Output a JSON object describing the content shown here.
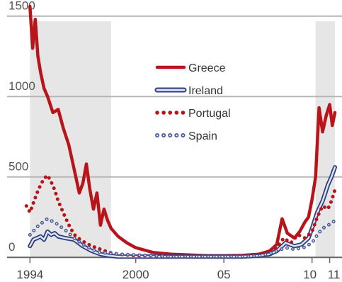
{
  "chart_data": {
    "type": "line",
    "y_ticks": [
      0,
      500,
      1000,
      1500
    ],
    "x_tick_labels": [
      {
        "label": "1994",
        "x": 1994
      },
      {
        "label": "2000",
        "x": 2000
      },
      {
        "label": "05",
        "x": 2005
      },
      {
        "label": "10",
        "x": 2010
      },
      {
        "label": "11",
        "x": 2011
      }
    ],
    "xlim": [
      1992.3,
      2011.7
    ],
    "ylim": [
      -30,
      1600
    ],
    "grid": "horizontal",
    "legend_position": "center-right",
    "shaded_ranges": [
      [
        1994,
        1998.6
      ],
      [
        2010.2,
        2011.3
      ]
    ],
    "series": [
      {
        "name": "Greece",
        "style": "solid-thick",
        "color": "#b8141b",
        "x": [
          1994.0,
          1994.15,
          1994.3,
          1994.45,
          1994.6,
          1994.8,
          1995.0,
          1995.3,
          1995.6,
          1995.9,
          1996.2,
          1996.5,
          1996.8,
          1997.0,
          1997.2,
          1997.4,
          1997.6,
          1997.8,
          1998.0,
          1998.2,
          1998.4,
          1998.6,
          1999.0,
          1999.5,
          2000.0,
          2000.5,
          2001.0,
          2002.0,
          2003.0,
          2004.0,
          2005.0,
          2006.0,
          2007.0,
          2007.6,
          2008.0,
          2008.3,
          2008.6,
          2009.0,
          2009.3,
          2009.6,
          2009.8,
          2010.0,
          2010.2,
          2010.4,
          2010.6,
          2010.8,
          2011.0,
          2011.15,
          2011.3
        ],
        "values": [
          1560,
          1300,
          1480,
          1250,
          1150,
          1050,
          1000,
          900,
          920,
          800,
          700,
          550,
          400,
          460,
          580,
          420,
          300,
          400,
          200,
          300,
          230,
          180,
          130,
          90,
          60,
          45,
          30,
          20,
          15,
          10,
          10,
          12,
          20,
          40,
          80,
          240,
          150,
          120,
          160,
          220,
          250,
          360,
          500,
          930,
          780,
          880,
          950,
          820,
          900
        ]
      },
      {
        "name": "Ireland",
        "style": "outline-thick",
        "color": "#2a3c7a",
        "x": [
          1994.0,
          1994.2,
          1994.4,
          1994.6,
          1994.8,
          1995.0,
          1995.2,
          1995.4,
          1995.6,
          1996.0,
          1996.5,
          1997.0,
          1997.5,
          1998.0,
          1998.5,
          1999.0,
          2000.0,
          2001.0,
          2002.0,
          2003.0,
          2004.0,
          2005.0,
          2006.0,
          2007.0,
          2007.6,
          2008.0,
          2008.5,
          2009.0,
          2009.4,
          2009.8,
          2010.0,
          2010.3,
          2010.6,
          2010.9,
          2011.1,
          2011.3
        ],
        "values": [
          70,
          110,
          120,
          130,
          110,
          160,
          140,
          150,
          130,
          120,
          110,
          70,
          40,
          20,
          10,
          5,
          5,
          5,
          5,
          5,
          5,
          5,
          5,
          10,
          20,
          40,
          90,
          70,
          80,
          120,
          180,
          280,
          350,
          450,
          500,
          560
        ]
      },
      {
        "name": "Portugal",
        "style": "dotted-thick",
        "color": "#b8141b",
        "x": [
          1993.8,
          1994.0,
          1994.2,
          1994.4,
          1994.6,
          1994.8,
          1995.0,
          1995.2,
          1995.4,
          1995.6,
          1995.8,
          1996.0,
          1996.3,
          1996.6,
          1997.0,
          1997.5,
          1998.0,
          1998.5,
          1999.0,
          1999.5,
          2000.0,
          2001.0,
          2002.0,
          2003.0,
          2004.0,
          2005.0,
          2006.0,
          2007.0,
          2007.5,
          2008.0,
          2008.4,
          2008.8,
          2009.2,
          2009.6,
          2010.0,
          2010.3,
          2010.6,
          2010.9,
          2011.1,
          2011.3
        ],
        "values": [
          320,
          280,
          340,
          400,
          450,
          490,
          510,
          470,
          420,
          350,
          300,
          250,
          180,
          130,
          100,
          70,
          50,
          30,
          20,
          15,
          10,
          10,
          5,
          5,
          5,
          5,
          10,
          20,
          30,
          60,
          120,
          90,
          140,
          120,
          160,
          250,
          320,
          300,
          350,
          420
        ]
      },
      {
        "name": "Spain",
        "style": "outline-dotted",
        "color": "#4a5a9a",
        "x": [
          1994.0,
          1994.5,
          1995.0,
          1995.5,
          1996.0,
          1996.5,
          1997.0,
          1997.5,
          1998.0,
          1999.0,
          2000.0,
          2001.0,
          2002.0,
          2003.0,
          2004.0,
          2005.0,
          2006.0,
          2007.0,
          2007.5,
          2008.0,
          2008.5,
          2009.0,
          2009.5,
          2010.0,
          2010.3,
          2010.6,
          2010.9,
          2011.1,
          2011.3
        ],
        "values": [
          140,
          200,
          240,
          210,
          170,
          120,
          80,
          50,
          30,
          20,
          15,
          10,
          5,
          5,
          5,
          5,
          5,
          10,
          20,
          40,
          60,
          50,
          60,
          90,
          140,
          180,
          200,
          210,
          230
        ]
      }
    ]
  }
}
